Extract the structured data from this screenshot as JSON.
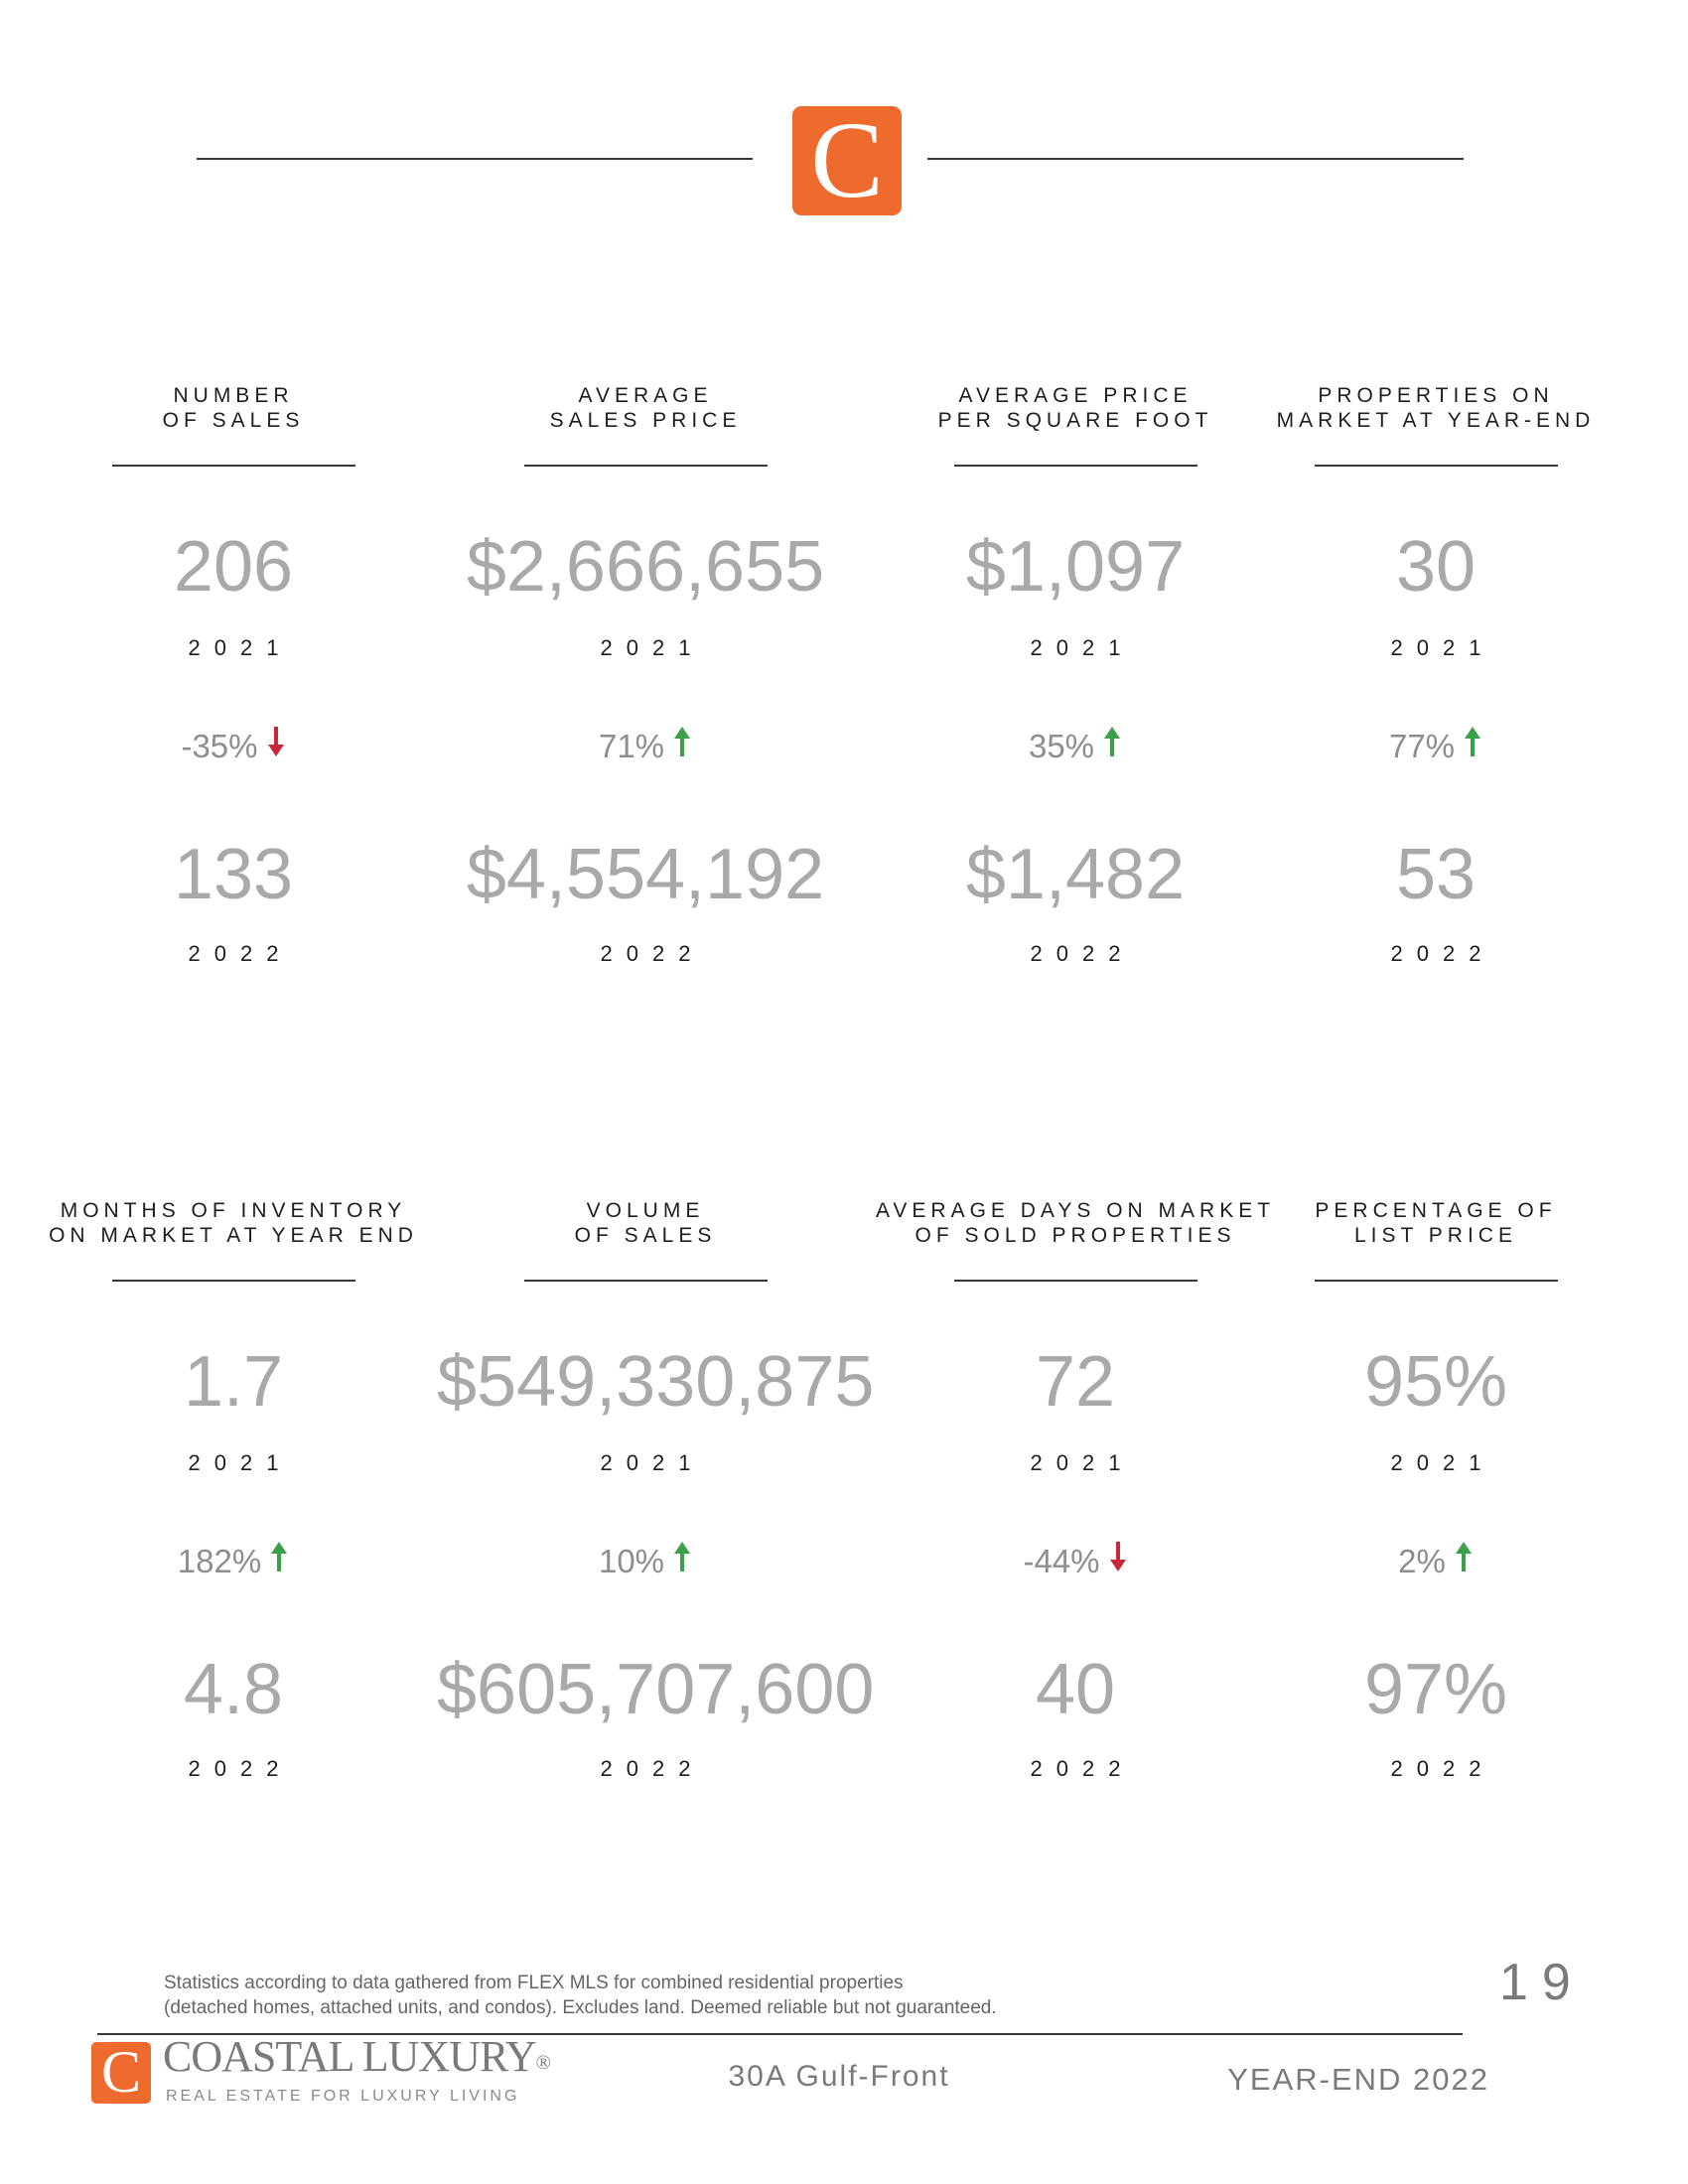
{
  "header": {
    "logo_letter": "C"
  },
  "stats_top": [
    {
      "label": "NUMBER\nOF SALES",
      "value_2021": "206",
      "year_2021": "2021",
      "change": "-35%",
      "direction": "down",
      "value_2022": "133",
      "year_2022": "2022"
    },
    {
      "label": "AVERAGE\nSALES PRICE",
      "value_2021": "$2,666,655",
      "year_2021": "2021",
      "change": "71%",
      "direction": "up",
      "value_2022": "$4,554,192",
      "year_2022": "2022"
    },
    {
      "label": "AVERAGE PRICE\nPER SQUARE FOOT",
      "value_2021": "$1,097",
      "year_2021": "2021",
      "change": "35%",
      "direction": "up",
      "value_2022": "$1,482",
      "year_2022": "2022"
    },
    {
      "label": "PROPERTIES ON\nMARKET AT YEAR-END",
      "value_2021": "30",
      "year_2021": "2021",
      "change": "77%",
      "direction": "up",
      "value_2022": "53",
      "year_2022": "2022"
    }
  ],
  "stats_bottom": [
    {
      "label": "MONTHS OF INVENTORY\nON MARKET AT YEAR END",
      "value_2021": "1.7",
      "year_2021": "2021",
      "change": "182%",
      "direction": "up",
      "value_2022": "4.8",
      "year_2022": "2022"
    },
    {
      "label": "VOLUME\nOF SALES",
      "value_2021": "$549,330,875",
      "year_2021": "2021",
      "change": "10%",
      "direction": "up",
      "value_2022": "$605,707,600",
      "year_2022": "2022"
    },
    {
      "label": "AVERAGE DAYS ON MARKET\nOF SOLD PROPERTIES",
      "value_2021": "72",
      "year_2021": "2021",
      "change": "-44%",
      "direction": "down",
      "value_2022": "40",
      "year_2022": "2022"
    },
    {
      "label": "PERCENTAGE OF\nLIST PRICE",
      "value_2021": "95%",
      "year_2021": "2021",
      "change": "2%",
      "direction": "up",
      "value_2022": "97%",
      "year_2022": "2022"
    }
  ],
  "footnote": {
    "line1": "Statistics according to data gathered from FLEX MLS for combined residential properties",
    "line2": "(detached homes, attached units, and condos). Excludes land. Deemed reliable but not guaranteed."
  },
  "page_number": "19",
  "footer": {
    "logo_letter": "C",
    "brand_name": "COASTAL LUXURY",
    "brand_reg": "®",
    "brand_tagline": "REAL ESTATE FOR LUXURY LIVING",
    "area": "30A Gulf-Front",
    "edition": "YEAR-END 2022"
  },
  "colors": {
    "accent": "#ee6b2d",
    "up_arrow": "#3aa04a",
    "down_arrow": "#c8283a",
    "value_gray": "#a9a9a9"
  }
}
